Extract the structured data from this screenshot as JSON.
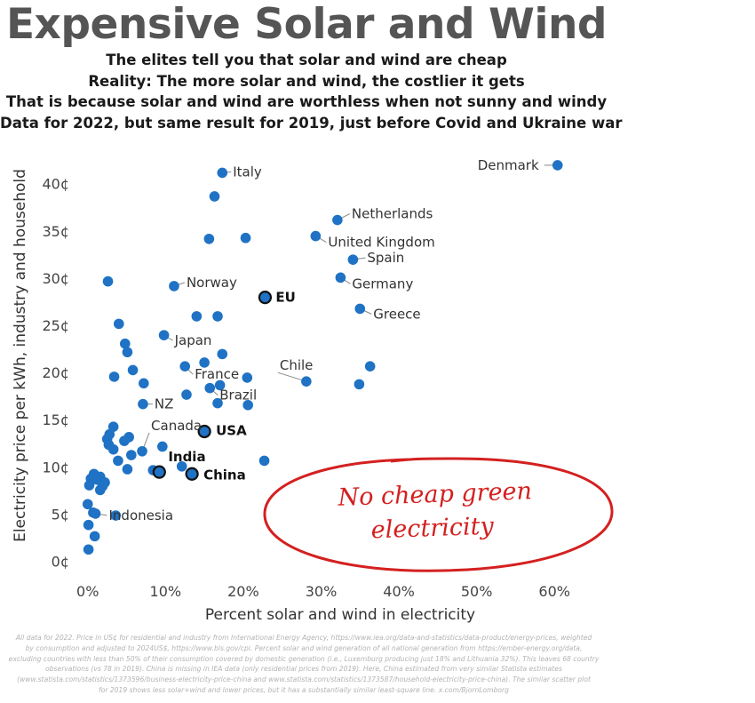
{
  "header": {
    "title": "Expensive Solar and Wind",
    "subtitles": [
      "The elites tell you that solar and wind are cheap",
      "Reality: The more solar and wind, the costlier it gets",
      "That is because solar and wind are worthless when not sunny and windy",
      "Data for 2022, but same result for 2019, just before Covid and Ukraine war"
    ]
  },
  "callout": {
    "line1": "No cheap green",
    "line2": "electricity",
    "color": "#d42020"
  },
  "footnote": [
    "All data for 2022. Price in US¢ for residential and industry from International Energy Agency, https://www.iea.org/data-and-statistics/data-product/energy-prices, weighted",
    "by consumption and adjusted to 2024US$, https://www.bls.gov/cpi. Percent solar and wind generation of all national generation from https://ember-energy.org/data,",
    "excluding countries with less than 50% of their consumption covered by domestic generation (i.e., Luxemburg producing just 18% and Lithuania 32%). This leaves 68 country",
    "observations (vs 78 in 2019). China is missing in IEA data (only residential prices from 2019). Here, China estimated from very similar Statista estimates",
    "(www.statista.com/statistics/1373596/business-electricity-price-china and www.statista.com/statistics/1373587/household-electricity-price-china). The similar scatter plot",
    "for 2019 shows less solar+wind and lower prices, but it has a substantially similar least-square line. x.com/BjornLomborg"
  ],
  "chart_data": {
    "type": "scatter",
    "xlabel": "Percent solar and wind in electricity",
    "ylabel": "Electricity price per kWh, industry and household",
    "xlim": [
      -1,
      65
    ],
    "ylim": [
      -1.5,
      43.5
    ],
    "xticks": [
      0,
      10,
      20,
      30,
      40,
      50,
      60
    ],
    "xtick_labels": [
      "0%",
      "10%",
      "20%",
      "30%",
      "40%",
      "50%",
      "60%"
    ],
    "yticks": [
      0,
      5,
      10,
      15,
      20,
      25,
      30,
      35,
      40
    ],
    "ytick_labels": [
      "0¢",
      "5¢",
      "10¢",
      "15¢",
      "20¢",
      "25¢",
      "30¢",
      "35¢",
      "40¢"
    ],
    "grid": false,
    "colors": {
      "marker": "#1f72c4",
      "highlight_edge": "#111111"
    },
    "labeled_points": [
      {
        "label": "Denmark",
        "x": 60.4,
        "y": 42.0,
        "bold": false
      },
      {
        "label": "Italy",
        "x": 17.3,
        "y": 41.2,
        "bold": false
      },
      {
        "label": "Netherlands",
        "x": 32.1,
        "y": 36.2,
        "bold": false
      },
      {
        "label": "United Kingdom",
        "x": 29.3,
        "y": 34.5,
        "bold": false
      },
      {
        "label": "Spain",
        "x": 34.1,
        "y": 32.0,
        "bold": false
      },
      {
        "label": "Germany",
        "x": 32.5,
        "y": 30.1,
        "bold": false
      },
      {
        "label": "Norway",
        "x": 11.1,
        "y": 29.2,
        "bold": false
      },
      {
        "label": "EU",
        "x": 22.8,
        "y": 28.0,
        "bold": true
      },
      {
        "label": "Greece",
        "x": 35.0,
        "y": 26.8,
        "bold": false
      },
      {
        "label": "Japan",
        "x": 9.8,
        "y": 24.0,
        "bold": false
      },
      {
        "label": "Chile",
        "x": 28.1,
        "y": 19.1,
        "bold": false
      },
      {
        "label": "France",
        "x": 12.5,
        "y": 20.7,
        "bold": false
      },
      {
        "label": "Brazil",
        "x": 15.7,
        "y": 18.4,
        "bold": false
      },
      {
        "label": "NZ",
        "x": 7.1,
        "y": 16.7,
        "bold": false
      },
      {
        "label": "USA",
        "x": 15.0,
        "y": 13.8,
        "bold": true
      },
      {
        "label": "Canada",
        "x": 7.0,
        "y": 11.7,
        "bold": false
      },
      {
        "label": "India",
        "x": 9.2,
        "y": 9.5,
        "bold": true
      },
      {
        "label": "China",
        "x": 13.4,
        "y": 9.3,
        "bold": true
      },
      {
        "label": "Indonesia",
        "x": 1.0,
        "y": 5.1,
        "bold": false
      }
    ],
    "unlabeled_points": [
      {
        "x": 16.3,
        "y": 38.7
      },
      {
        "x": 15.6,
        "y": 34.2
      },
      {
        "x": 20.3,
        "y": 34.3
      },
      {
        "x": 2.6,
        "y": 29.7
      },
      {
        "x": 14.0,
        "y": 26.0
      },
      {
        "x": 16.7,
        "y": 26.0
      },
      {
        "x": 4.0,
        "y": 25.2
      },
      {
        "x": 4.8,
        "y": 23.1
      },
      {
        "x": 5.1,
        "y": 22.2
      },
      {
        "x": 17.3,
        "y": 22.0
      },
      {
        "x": 15.0,
        "y": 21.1
      },
      {
        "x": 5.8,
        "y": 20.3
      },
      {
        "x": 36.3,
        "y": 20.7
      },
      {
        "x": 20.5,
        "y": 19.5
      },
      {
        "x": 3.4,
        "y": 19.6
      },
      {
        "x": 7.2,
        "y": 18.9
      },
      {
        "x": 34.9,
        "y": 18.8
      },
      {
        "x": 17.0,
        "y": 18.7
      },
      {
        "x": 12.7,
        "y": 17.7
      },
      {
        "x": 16.7,
        "y": 16.8
      },
      {
        "x": 20.6,
        "y": 16.6
      },
      {
        "x": 3.3,
        "y": 14.3
      },
      {
        "x": 2.8,
        "y": 13.5
      },
      {
        "x": 2.5,
        "y": 13.0
      },
      {
        "x": 4.7,
        "y": 12.8
      },
      {
        "x": 5.3,
        "y": 13.2
      },
      {
        "x": 2.7,
        "y": 12.4
      },
      {
        "x": 9.6,
        "y": 12.2
      },
      {
        "x": 3.3,
        "y": 11.9
      },
      {
        "x": 5.6,
        "y": 11.3
      },
      {
        "x": 3.9,
        "y": 10.7
      },
      {
        "x": 22.7,
        "y": 10.7
      },
      {
        "x": 5.1,
        "y": 9.8
      },
      {
        "x": 8.4,
        "y": 9.7
      },
      {
        "x": 12.1,
        "y": 10.1
      },
      {
        "x": 0.8,
        "y": 9.3
      },
      {
        "x": 0.4,
        "y": 8.8
      },
      {
        "x": 0.2,
        "y": 8.1
      },
      {
        "x": 1.2,
        "y": 8.7
      },
      {
        "x": 1.6,
        "y": 9.0
      },
      {
        "x": 2.2,
        "y": 8.4
      },
      {
        "x": 1.9,
        "y": 8.0
      },
      {
        "x": 1.6,
        "y": 7.6
      },
      {
        "x": 0.0,
        "y": 6.1
      },
      {
        "x": 0.7,
        "y": 5.2
      },
      {
        "x": 3.6,
        "y": 4.9
      },
      {
        "x": 0.1,
        "y": 3.9
      },
      {
        "x": 0.9,
        "y": 2.7
      },
      {
        "x": 0.1,
        "y": 1.3
      }
    ]
  }
}
